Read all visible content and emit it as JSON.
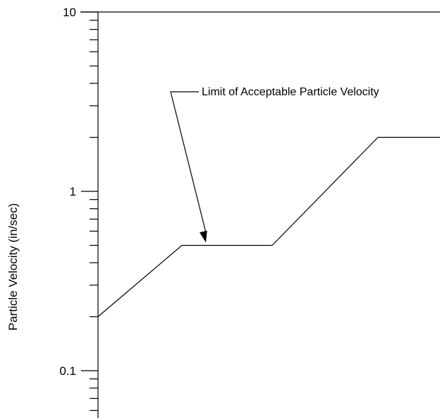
{
  "chart_data": {
    "type": "line",
    "title": "",
    "xlabel": "",
    "ylabel": "Particle Velocity (in/sec)",
    "y_scale": "log",
    "ylim": [
      0.05,
      10
    ],
    "grid": false,
    "ytick_labels": [
      {
        "value": 10,
        "label": "10"
      },
      {
        "value": 1,
        "label": "1"
      },
      {
        "value": 0.1,
        "label": "0.1"
      }
    ],
    "series": [
      {
        "values": [
          0.2,
          0.5,
          0.5,
          2.0,
          2.0
        ]
      }
    ],
    "annotations": [
      {
        "text": "Limit of Acceptable Particle Velocity",
        "points_to": 0.5
      }
    ],
    "colors": {
      "line": "#000000",
      "axis": "#000000"
    }
  }
}
